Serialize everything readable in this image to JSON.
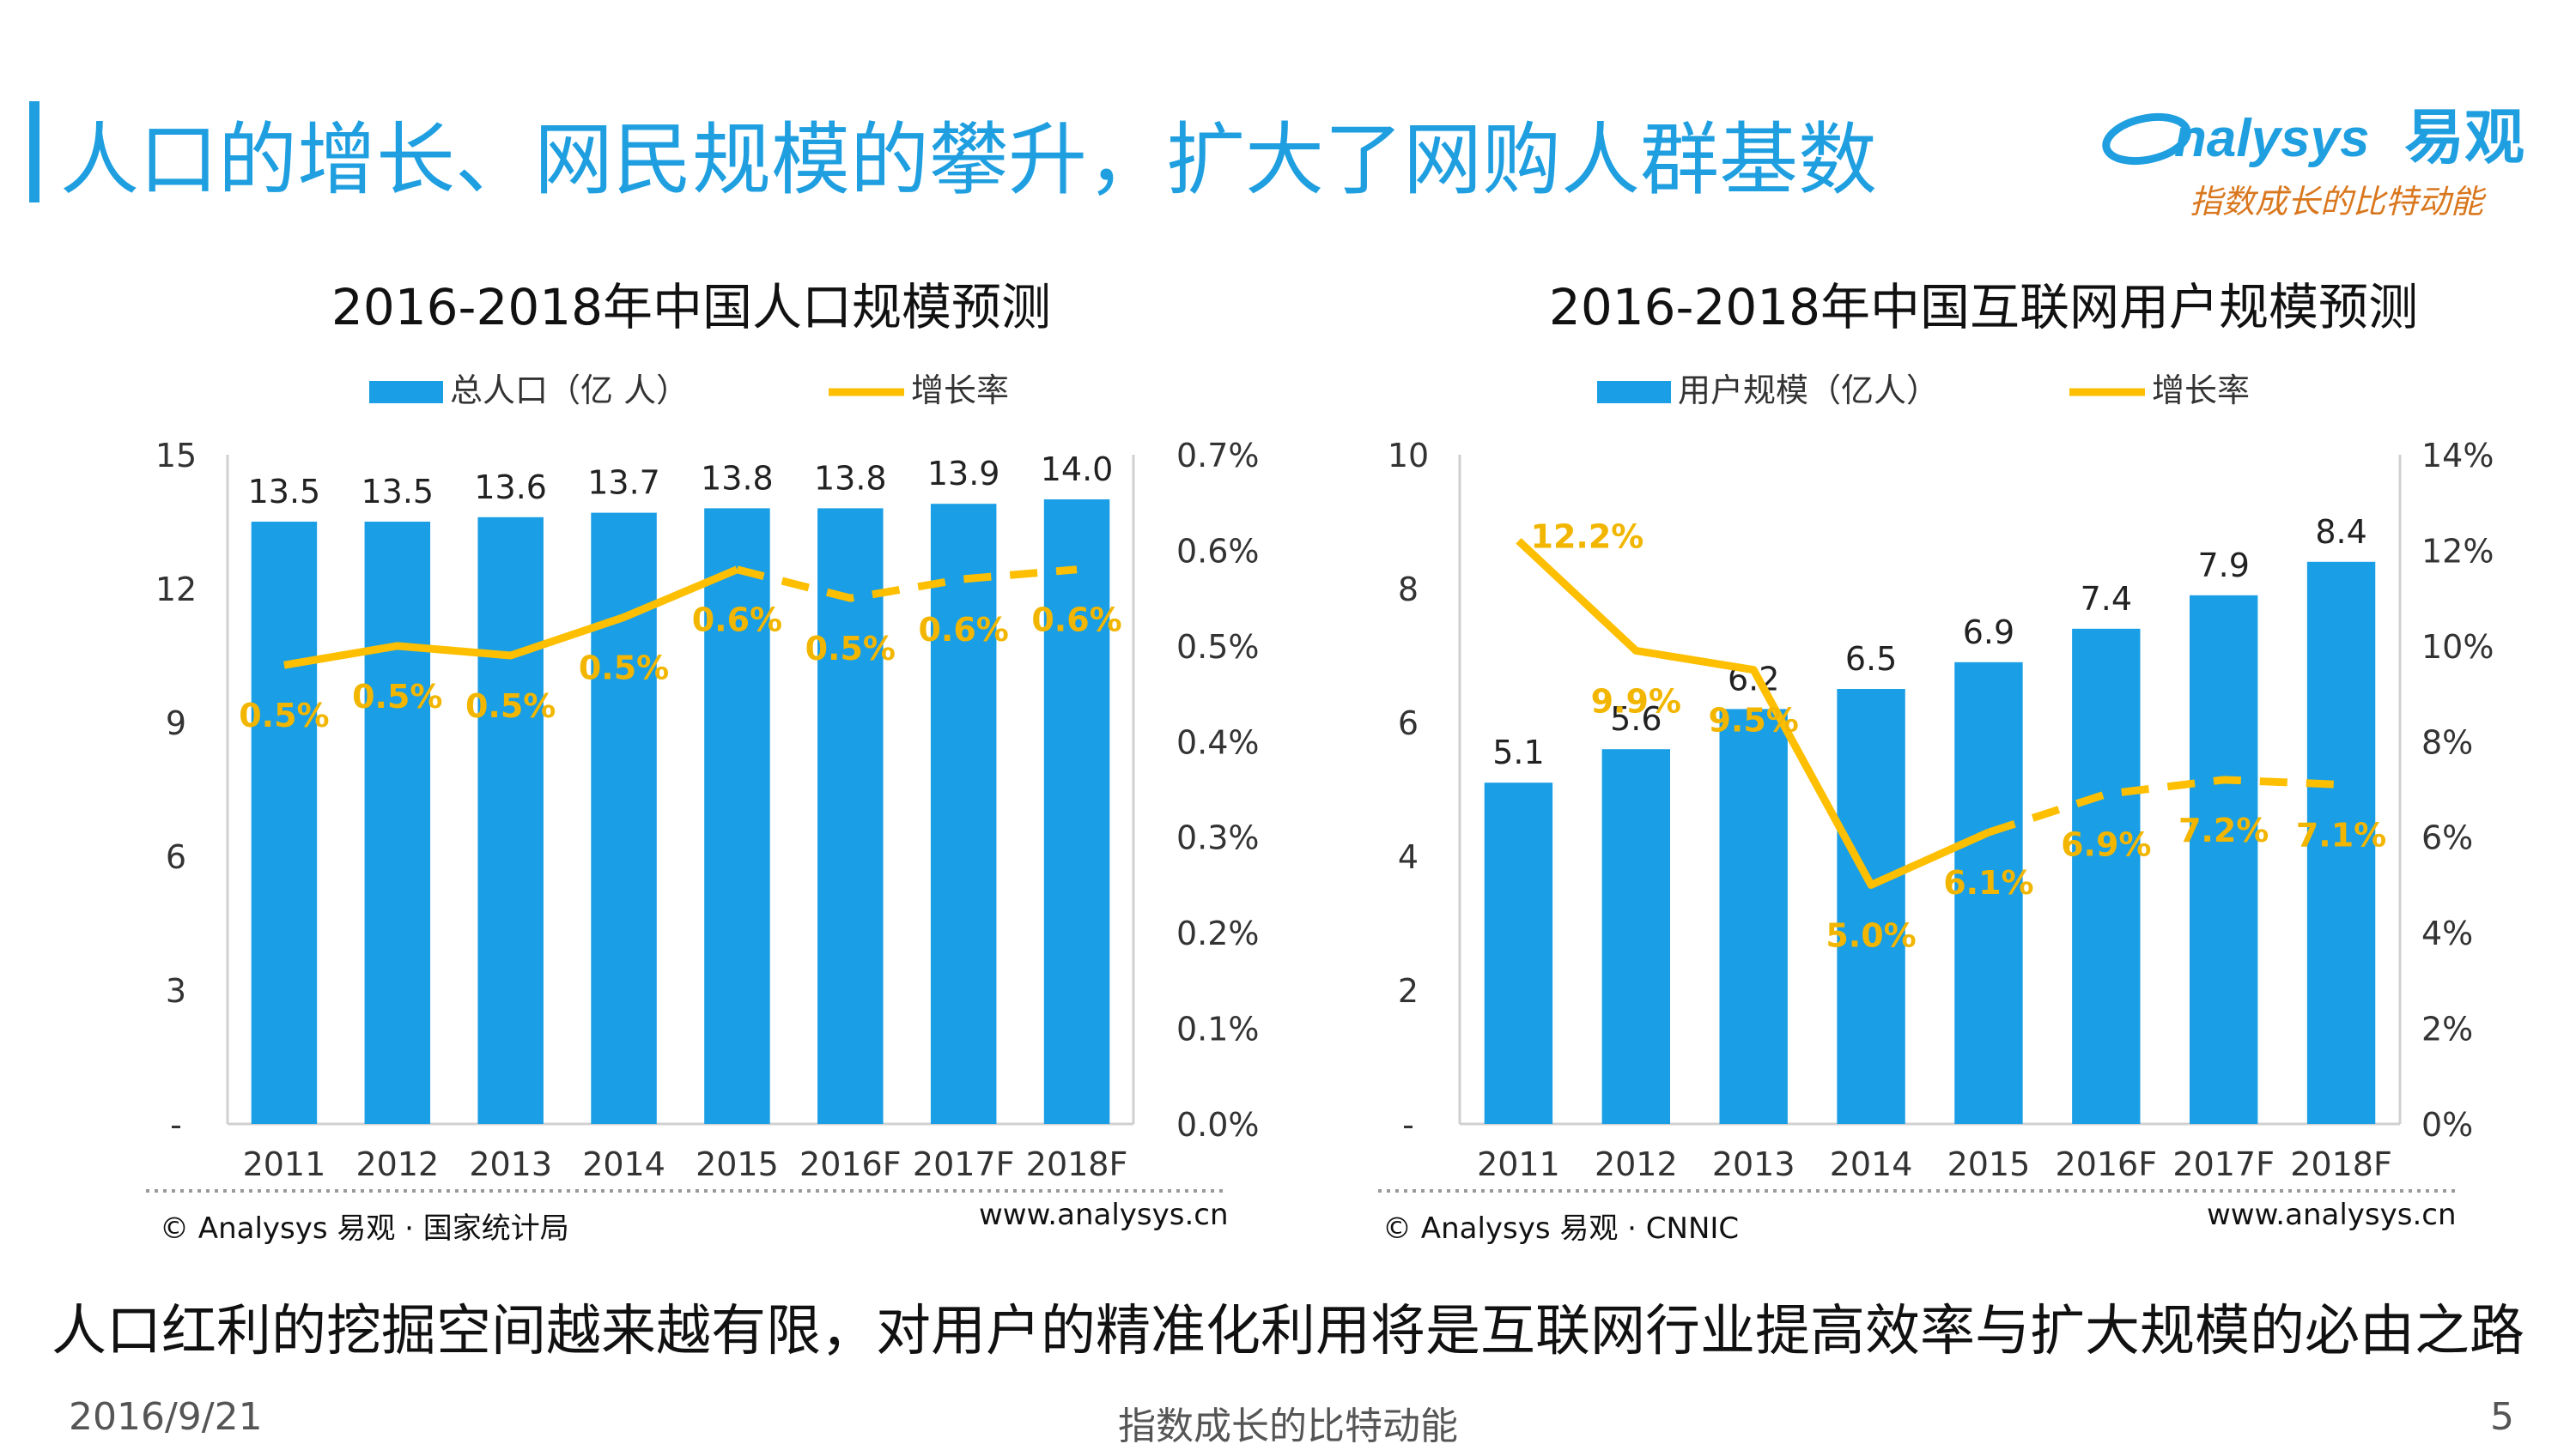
{
  "slide": {
    "title": "人口的增长、网民规模的攀升，扩大了网购人群基数",
    "conclusion": "人口红利的挖掘空间越来越有限，对用户的精准化利用将是互联网行业提高效率与扩大规模的必由之路",
    "footer_date": "2016/9/21",
    "footer_center": "指数成长的比特动能",
    "page_number": "5"
  },
  "logo": {
    "brand": "nalysys",
    "brand_cn": "易观",
    "tagline": "指数成长的比特动能"
  },
  "colors": {
    "accent": "#1f9fe0",
    "bar": "#1a9ee5",
    "line": "#fdbf00",
    "line_label": "#f2b600"
  },
  "chart_data": [
    {
      "type": "bar",
      "title": "2016-2018年中国人口规模预测",
      "categories": [
        "2011",
        "2012",
        "2013",
        "2014",
        "2015",
        "2016F",
        "2017F",
        "2018F"
      ],
      "series": [
        {
          "name": "总人口（亿 人）",
          "kind": "bar",
          "axis": "left",
          "values": [
            13.5,
            13.5,
            13.6,
            13.7,
            13.8,
            13.8,
            13.9,
            14.0
          ],
          "labels": [
            "13.5",
            "13.5",
            "13.6",
            "13.7",
            "13.8",
            "13.8",
            "13.9",
            "14.0"
          ]
        },
        {
          "name": "增长率",
          "kind": "line",
          "axis": "right",
          "values": [
            0.48,
            0.5,
            0.49,
            0.53,
            0.58,
            0.55,
            0.57,
            0.58
          ],
          "labels": [
            "0.5%",
            "0.5%",
            "0.5%",
            "0.5%",
            "0.6%",
            "0.5%",
            "0.6%",
            "0.6%"
          ],
          "solid_until": "2015"
        }
      ],
      "y_left": {
        "min": 0,
        "max": 15,
        "ticks": [
          "-",
          "3",
          "6",
          "9",
          "12",
          "15"
        ]
      },
      "y_right": {
        "min": 0,
        "max": 0.7,
        "ticks": [
          "0.0%",
          "0.1%",
          "0.2%",
          "0.3%",
          "0.4%",
          "0.5%",
          "0.6%",
          "0.7%"
        ]
      },
      "legend_placement": "top",
      "source": "© Analysys 易观 · 国家统计局",
      "site": "www.analysys.cn"
    },
    {
      "type": "bar",
      "title": "2016-2018年中国互联网用户规模预测",
      "categories": [
        "2011",
        "2012",
        "2013",
        "2014",
        "2015",
        "2016F",
        "2017F",
        "2018F"
      ],
      "series": [
        {
          "name": "用户规模（亿人）",
          "kind": "bar",
          "axis": "left",
          "values": [
            5.1,
            5.6,
            6.2,
            6.5,
            6.9,
            7.4,
            7.9,
            8.4
          ],
          "labels": [
            "5.1",
            "5.6",
            "6.2",
            "6.5",
            "6.9",
            "7.4",
            "7.9",
            "8.4"
          ]
        },
        {
          "name": "增长率",
          "kind": "line",
          "axis": "right",
          "values": [
            12.2,
            9.9,
            9.5,
            5.0,
            6.1,
            6.9,
            7.2,
            7.1
          ],
          "labels": [
            "12.2%",
            "9.9%",
            "9.5%",
            "5.0%",
            "6.1%",
            "6.9%",
            "7.2%",
            "7.1%"
          ],
          "solid_until": "2015"
        }
      ],
      "y_left": {
        "min": 0,
        "max": 10,
        "ticks": [
          "-",
          "2",
          "4",
          "6",
          "8",
          "10"
        ]
      },
      "y_right": {
        "min": 0,
        "max": 14,
        "ticks": [
          "0%",
          "2%",
          "4%",
          "6%",
          "8%",
          "10%",
          "12%",
          "14%"
        ]
      },
      "legend_placement": "top",
      "source": "© Analysys 易观 · CNNIC",
      "site": "www.analysys.cn"
    }
  ]
}
